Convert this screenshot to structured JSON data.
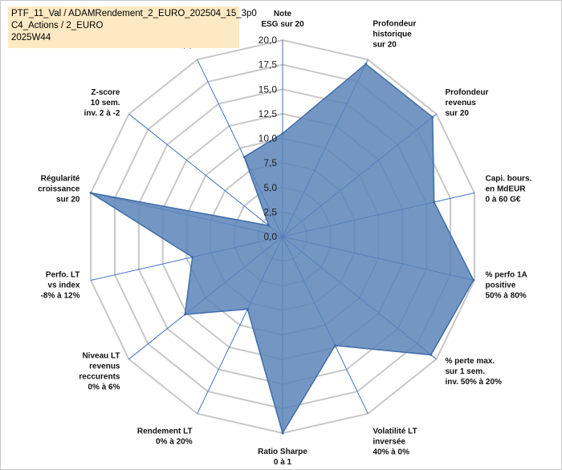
{
  "title_lines": [
    "PTF_11_Val / ADAMRendement_2_EURO_202504_15_3p0",
    "C4_Actions / 2_EURO",
    "2025W44"
  ],
  "colors": {
    "fill": "#5b84b8",
    "stroke": "#3e6da8",
    "grid": "#c8c8c8",
    "axis": "#4472c4",
    "title_bg": "#fde9c3"
  },
  "chart_data": {
    "type": "radar",
    "title": "PTF_11_Val / ADAMRendement_2_EURO_202504_15_3p0 C4_Actions / 2_EURO 2025W44",
    "rmin": 0,
    "rmax": 20,
    "ticks": [
      "0,0",
      "2,5",
      "5,0",
      "7,5",
      "10,0",
      "12,5",
      "15,0",
      "17,5",
      "20,0"
    ],
    "grid": true,
    "axes": [
      {
        "label": [
          "Note",
          "ESG sur 20"
        ],
        "value": 10.5
      },
      {
        "label": [
          "Profondeur",
          "historique",
          "sur 20"
        ],
        "value": 19.5
      },
      {
        "label": [
          "Profondeur",
          "revenus",
          "sur 20"
        ],
        "value": 19.5
      },
      {
        "label": [
          "Capi. bours.",
          "en MdEUR",
          "0 à 60 G€"
        ],
        "value": 15.8
      },
      {
        "label": [
          "% perfo 1A",
          "positive",
          "50% à 80%"
        ],
        "value": 19.9
      },
      {
        "label": [
          "% perte max.",
          "sur 1 sem.",
          "inv. 50% à 20%"
        ],
        "value": 19.3
      },
      {
        "label": [
          "Volatilité LT",
          "inversée",
          "40% à 0%"
        ],
        "value": 12.3
      },
      {
        "label": [
          "Ratio Sharpe",
          "0 à 1"
        ],
        "value": 20.0
      },
      {
        "label": [
          "Rendement LT",
          "0% à 20%"
        ],
        "value": 8.2
      },
      {
        "label": [
          "Niveau LT",
          "revenus",
          "reccurents",
          "0% à 6%"
        ],
        "value": 12.7
      },
      {
        "label": [
          "Perfo. LT",
          "vs index",
          "-8% à 12%"
        ],
        "value": 9.4
      },
      {
        "label": [
          "Régularité",
          "croissance",
          "sur 20"
        ],
        "value": 20.0
      },
      {
        "label": [
          "Z-score",
          "10 sem.",
          "inv. 2 à -2"
        ],
        "value": 1.8
      },
      {
        "label": [
          "Momentum",
          "Achat (20) /",
          "Vente (0)"
        ],
        "value": 9.0
      }
    ]
  }
}
